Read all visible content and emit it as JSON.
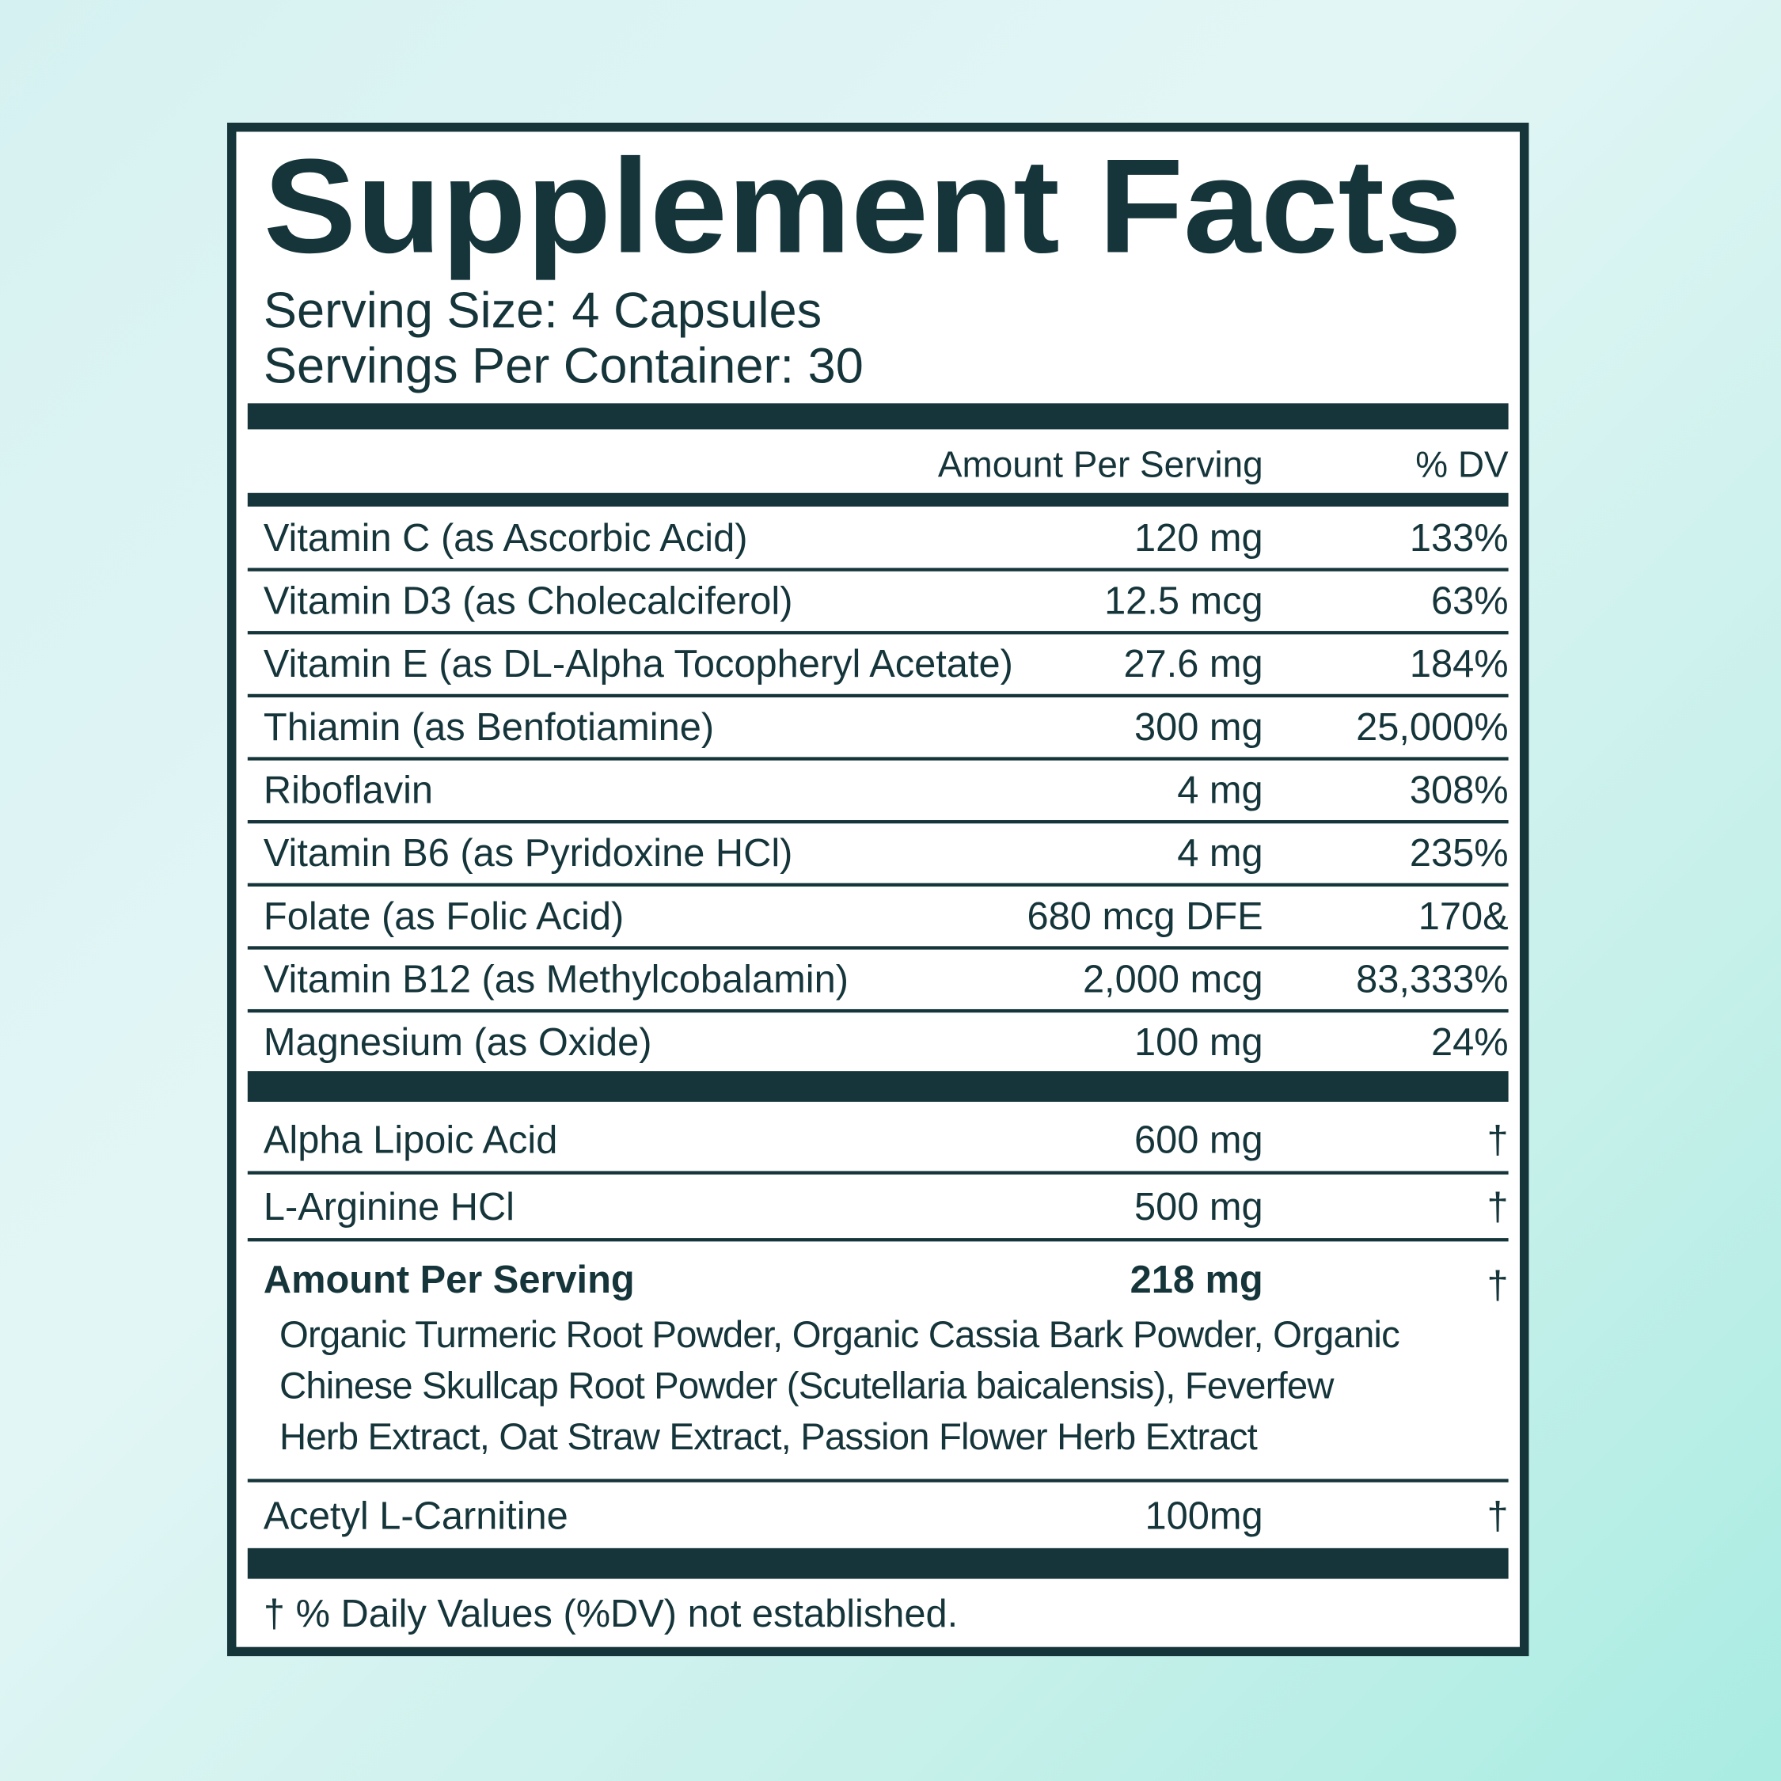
{
  "header": {
    "title": "Supplement Facts",
    "serving_size": "Serving Size: 4 Capsules",
    "servings_per_container": "Servings Per Container: 30"
  },
  "table": {
    "columns": [
      "Amount Per Serving",
      "% DV"
    ],
    "rows": [
      [
        "Vitamin C (as Ascorbic Acid)",
        "120 mg",
        "133%"
      ],
      [
        "Vitamin D3 (as Cholecalciferol)",
        "12.5 mcg",
        "63%"
      ],
      [
        "Vitamin E (as DL-Alpha Tocopheryl Acetate)",
        "27.6 mg",
        "184%"
      ],
      [
        "Thiamin (as Benfotiamine)",
        "300 mg",
        "25,000%"
      ],
      [
        "Riboflavin",
        "4 mg",
        "308%"
      ],
      [
        "Vitamin B6 (as Pyridoxine HCl)",
        "4 mg",
        "235%"
      ],
      [
        "Folate (as Folic Acid)",
        "680 mcg DFE",
        "170&"
      ],
      [
        "Vitamin B12 (as Methylcobalamin)",
        "2,000 mcg",
        "83,333%"
      ],
      [
        "Magnesium (as Oxide)",
        "100 mg",
        "24%"
      ]
    ]
  },
  "other": {
    "rows": [
      [
        "Alpha Lipoic Acid",
        "600 mg",
        "†"
      ],
      [
        "L-Arginine HCl",
        "500 mg",
        "†"
      ]
    ],
    "blend": {
      "name": "Amount Per Serving",
      "amount": "218 mg",
      "dv": "†",
      "ingredients": [
        "Organic Turmeric Root Powder, Organic Cassia Bark Powder, Organic",
        "Chinese Skullcap Root Powder (Scutellaria baicalensis), Feverfew",
        "Herb Extract, Oat Straw Extract, Passion Flower Herb Extract"
      ]
    },
    "last": [
      "Acetyl L-Carnitine",
      "100mg",
      "†"
    ]
  },
  "footnote": "† % Daily Values (%DV) not established."
}
